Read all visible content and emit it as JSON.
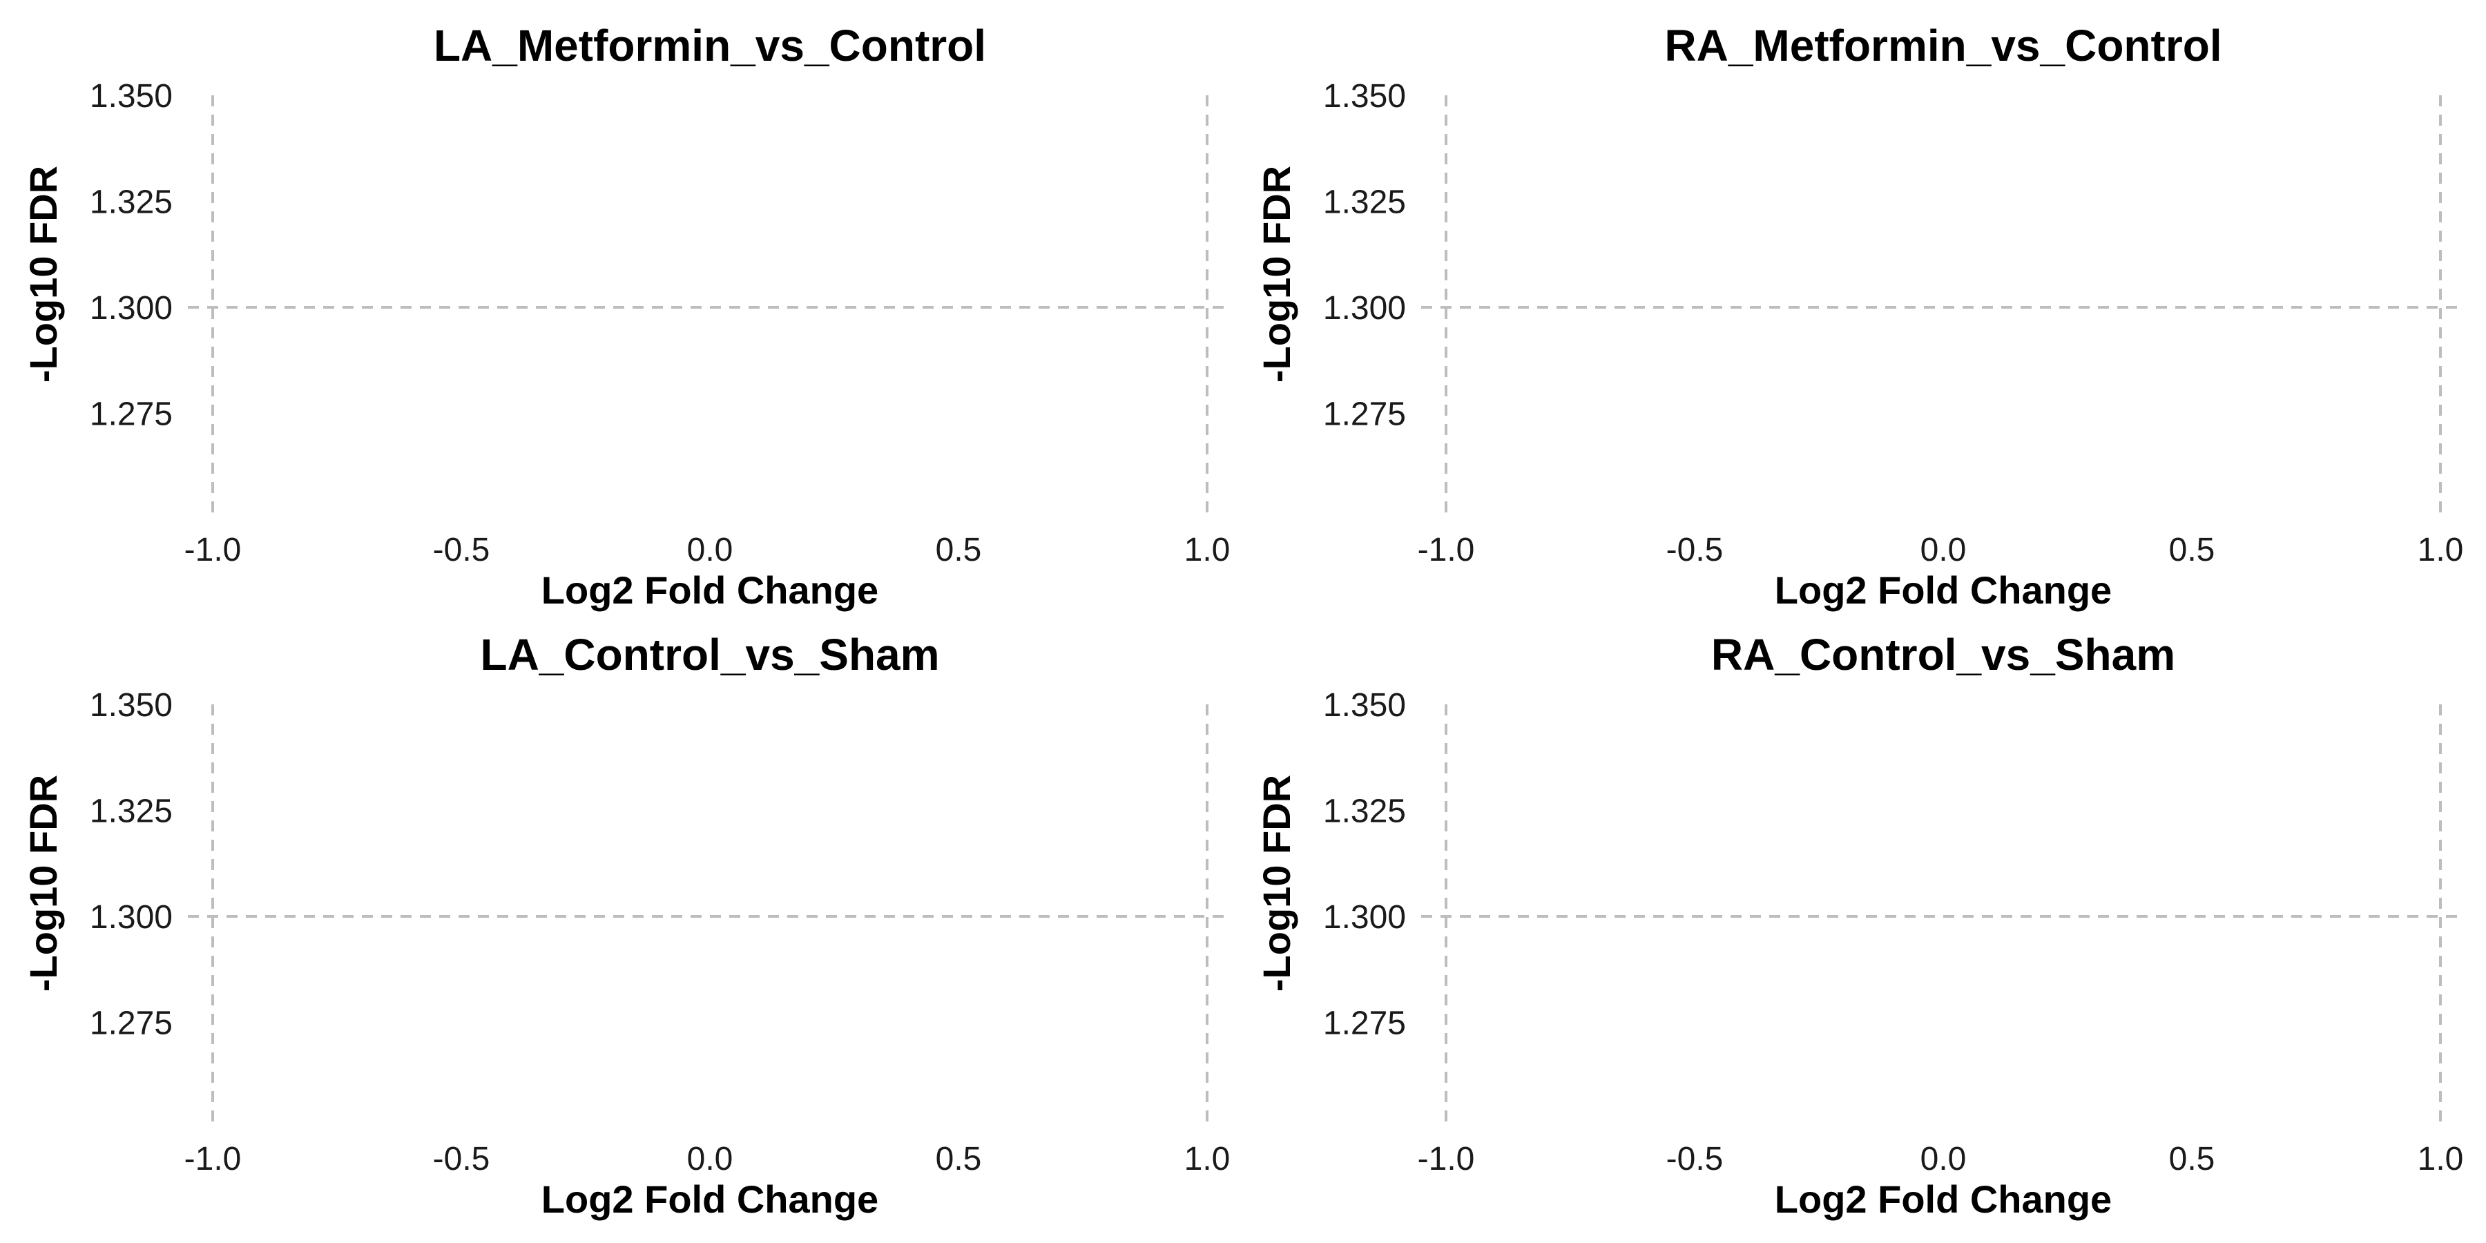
{
  "chart_data": [
    {
      "type": "scatter",
      "title": "LA_Metformin_vs_Control",
      "xlabel": "Log2 Fold Change",
      "ylabel": "-Log10 FDR",
      "xlim": [
        -1.05,
        1.05
      ],
      "ylim": [
        1.25,
        1.35
      ],
      "xticks": [
        -1.0,
        -0.5,
        0.0,
        0.5,
        1.0
      ],
      "xtick_labels": [
        "-1.0",
        "-0.5",
        "0.0",
        "0.5",
        "1.0"
      ],
      "yticks": [
        1.275,
        1.3,
        1.325,
        1.35
      ],
      "ytick_labels": [
        "1.275",
        "1.300",
        "1.325",
        "1.350"
      ],
      "reference_lines": {
        "vertical": [
          -1.0,
          1.0
        ],
        "horizontal": [
          1.3
        ]
      },
      "grid": false,
      "points": []
    },
    {
      "type": "scatter",
      "title": "RA_Metformin_vs_Control",
      "xlabel": "Log2 Fold Change",
      "ylabel": "-Log10 FDR",
      "xlim": [
        -1.05,
        1.05
      ],
      "ylim": [
        1.25,
        1.35
      ],
      "xticks": [
        -1.0,
        -0.5,
        0.0,
        0.5,
        1.0
      ],
      "xtick_labels": [
        "-1.0",
        "-0.5",
        "0.0",
        "0.5",
        "1.0"
      ],
      "yticks": [
        1.275,
        1.3,
        1.325,
        1.35
      ],
      "ytick_labels": [
        "1.275",
        "1.300",
        "1.325",
        "1.350"
      ],
      "reference_lines": {
        "vertical": [
          -1.0,
          1.0
        ],
        "horizontal": [
          1.3
        ]
      },
      "grid": false,
      "points": []
    },
    {
      "type": "scatter",
      "title": "LA_Control_vs_Sham",
      "xlabel": "Log2 Fold Change",
      "ylabel": "-Log10 FDR",
      "xlim": [
        -1.05,
        1.05
      ],
      "ylim": [
        1.25,
        1.35
      ],
      "xticks": [
        -1.0,
        -0.5,
        0.0,
        0.5,
        1.0
      ],
      "xtick_labels": [
        "-1.0",
        "-0.5",
        "0.0",
        "0.5",
        "1.0"
      ],
      "yticks": [
        1.275,
        1.3,
        1.325,
        1.35
      ],
      "ytick_labels": [
        "1.275",
        "1.300",
        "1.325",
        "1.350"
      ],
      "reference_lines": {
        "vertical": [
          -1.0,
          1.0
        ],
        "horizontal": [
          1.3
        ]
      },
      "grid": false,
      "points": []
    },
    {
      "type": "scatter",
      "title": "RA_Control_vs_Sham",
      "xlabel": "Log2 Fold Change",
      "ylabel": "-Log10 FDR",
      "xlim": [
        -1.05,
        1.05
      ],
      "ylim": [
        1.25,
        1.35
      ],
      "xticks": [
        -1.0,
        -0.5,
        0.0,
        0.5,
        1.0
      ],
      "xtick_labels": [
        "-1.0",
        "-0.5",
        "0.0",
        "0.5",
        "1.0"
      ],
      "yticks": [
        1.275,
        1.3,
        1.325,
        1.35
      ],
      "ytick_labels": [
        "1.275",
        "1.300",
        "1.325",
        "1.350"
      ],
      "reference_lines": {
        "vertical": [
          -1.0,
          1.0
        ],
        "horizontal": [
          1.3
        ]
      },
      "grid": false,
      "points": []
    }
  ]
}
